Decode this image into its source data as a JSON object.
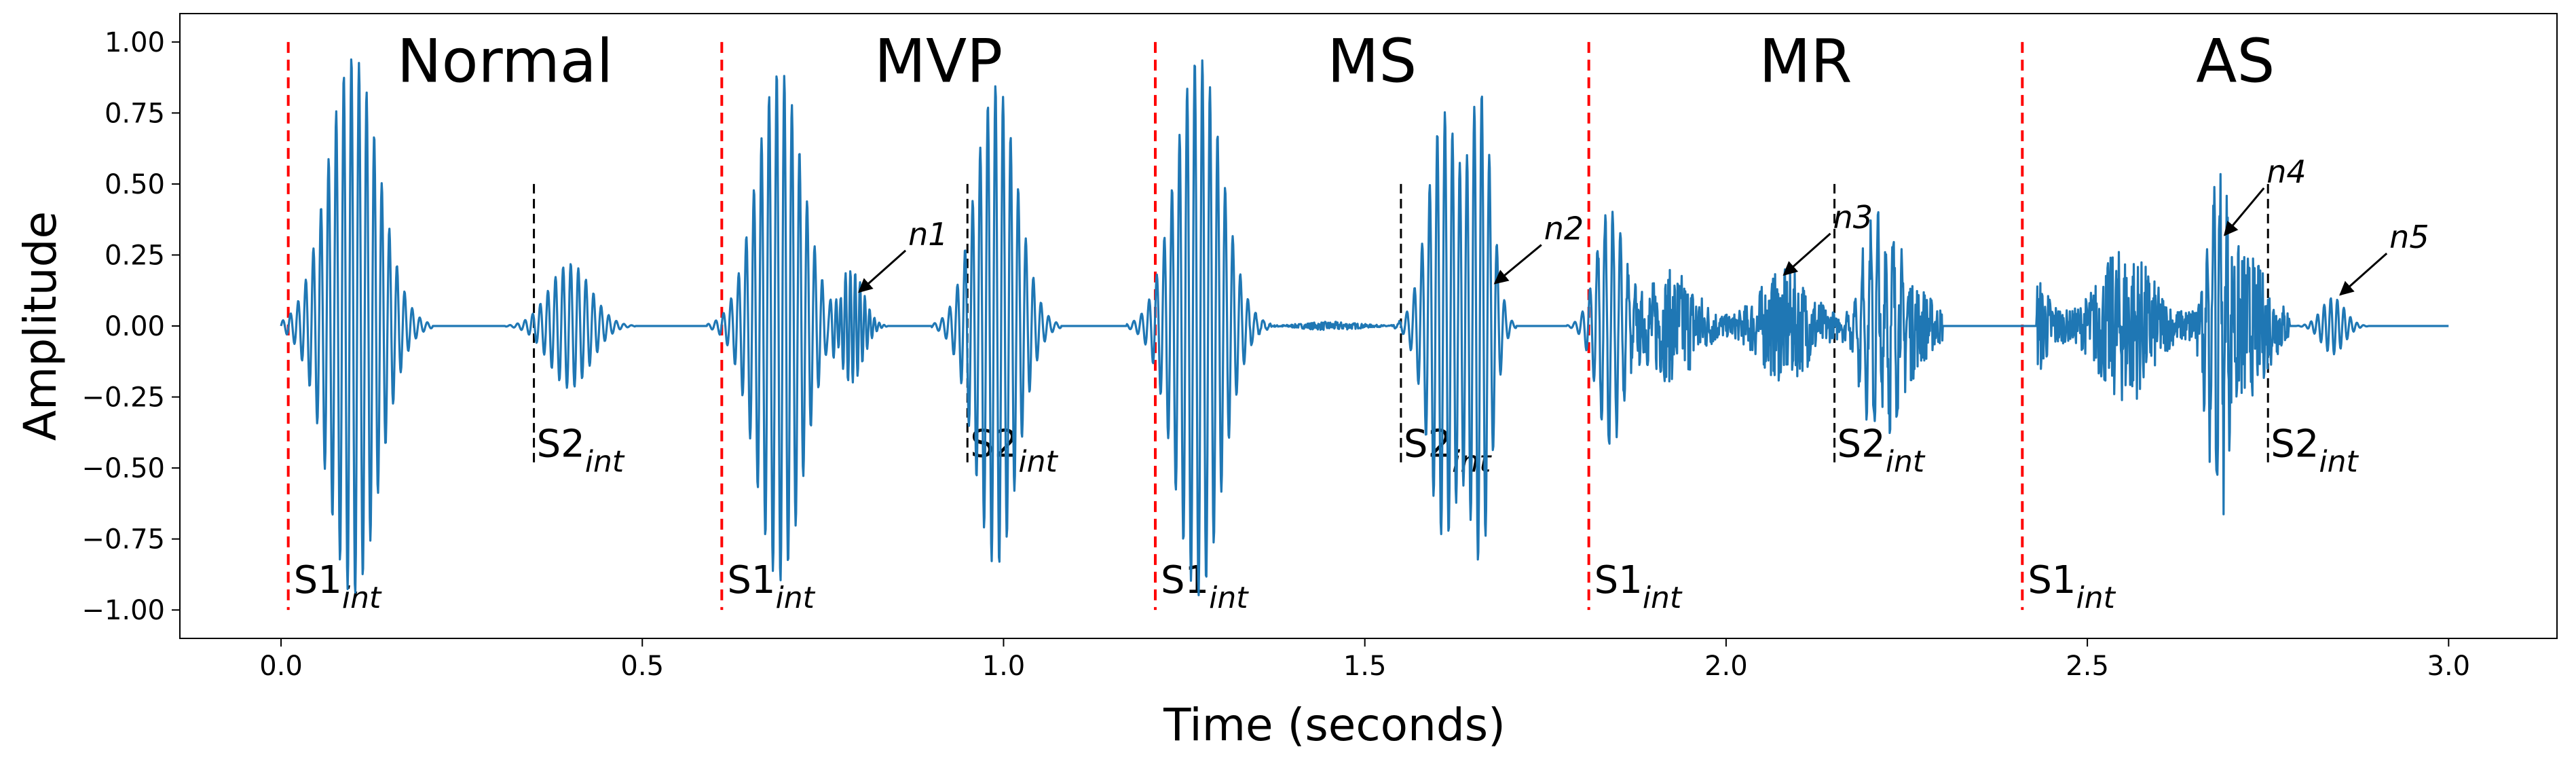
{
  "chart_data": {
    "type": "line",
    "xlabel": "Time (seconds)",
    "ylabel": "Amplitude",
    "xlim": [
      -0.14,
      3.15
    ],
    "ylim": [
      -1.1,
      1.1
    ],
    "x_ticks": [
      0.0,
      0.5,
      1.0,
      1.5,
      2.0,
      2.5,
      3.0
    ],
    "x_tick_labels": [
      "0.0",
      "0.5",
      "1.0",
      "1.5",
      "2.0",
      "2.5",
      "3.0"
    ],
    "y_ticks": [
      1.0,
      0.75,
      0.5,
      0.25,
      0.0,
      -0.25,
      -0.5,
      -0.75,
      -1.0
    ],
    "y_tick_labels": [
      "1.00",
      "0.75",
      "0.50",
      "0.25",
      "0.00",
      "−0.25",
      "−0.50",
      "−0.75",
      "−1.00"
    ],
    "series_color": "#1f77b4",
    "section_marker_color": "#ff0000",
    "s2_marker_color": "#000000",
    "sections": [
      {
        "label": "Normal",
        "start": 0.01,
        "s2": 0.35,
        "bursts": [
          {
            "t": 0.1,
            "dur": 0.11,
            "amp": 0.95,
            "freq": 95,
            "phase": 0.0
          },
          {
            "t": 0.4,
            "dur": 0.09,
            "amp": 0.22,
            "freq": 95,
            "phase": 1.0
          }
        ],
        "noise": null
      },
      {
        "label": "MVP",
        "start": 0.61,
        "s2": 0.95,
        "bursts": [
          {
            "t": 0.69,
            "dur": 0.1,
            "amp": 0.9,
            "freq": 95,
            "phase": 0.5
          },
          {
            "t": 0.79,
            "dur": 0.05,
            "amp": 0.2,
            "freq": 150,
            "phase": 0.3
          },
          {
            "t": 0.99,
            "dur": 0.09,
            "amp": 0.85,
            "freq": 95,
            "phase": 2.0
          }
        ],
        "noise": null
      },
      {
        "label": "MS",
        "start": 1.21,
        "s2": 1.55,
        "bursts": [
          {
            "t": 1.27,
            "dur": 0.1,
            "amp": 0.95,
            "freq": 95,
            "phase": 0.7
          },
          {
            "t": 1.61,
            "dur": 0.07,
            "amp": 0.75,
            "freq": 95,
            "phase": 1.4
          },
          {
            "t": 1.66,
            "dur": 0.05,
            "amp": 0.8,
            "freq": 95,
            "phase": 2.4
          }
        ],
        "noise": {
          "start": 1.34,
          "end": 1.55,
          "amp": 0.015
        }
      },
      {
        "label": "MR",
        "start": 1.81,
        "s2": 2.15,
        "bursts": [
          {
            "t": 1.84,
            "dur": 0.06,
            "amp": 0.4,
            "freq": 95,
            "phase": 0.9
          },
          {
            "t": 2.21,
            "dur": 0.07,
            "amp": 0.3,
            "freq": 95,
            "phase": 1.7
          }
        ],
        "noise": {
          "start": 1.82,
          "end": 2.3,
          "amp": 0.2
        }
      },
      {
        "label": "AS",
        "start": 2.41,
        "s2": 2.75,
        "bursts": [
          {
            "t": 2.68,
            "dur": 0.04,
            "amp": 0.55,
            "freq": 110,
            "phase": 0.2
          },
          {
            "t": 2.84,
            "dur": 0.05,
            "amp": 0.1,
            "freq": 110,
            "phase": 1.2
          }
        ],
        "noise": {
          "start": 2.43,
          "end": 2.78,
          "amp": 0.28
        }
      }
    ],
    "markers": {
      "s1_main": "S1",
      "s2_main": "S2",
      "subscript": "int"
    },
    "annotations": [
      {
        "text": "n1",
        "tip": [
          0.8,
          0.12
        ],
        "label": [
          0.87,
          0.28
        ]
      },
      {
        "text": "n2",
        "tip": [
          1.68,
          0.15
        ],
        "label": [
          1.75,
          0.3
        ]
      },
      {
        "text": "n3",
        "tip": [
          2.08,
          0.18
        ],
        "label": [
          2.15,
          0.34
        ]
      },
      {
        "text": "n4",
        "tip": [
          2.69,
          0.32
        ],
        "label": [
          2.75,
          0.5
        ]
      },
      {
        "text": "n5",
        "tip": [
          2.85,
          0.11
        ],
        "label": [
          2.92,
          0.27
        ]
      }
    ]
  }
}
